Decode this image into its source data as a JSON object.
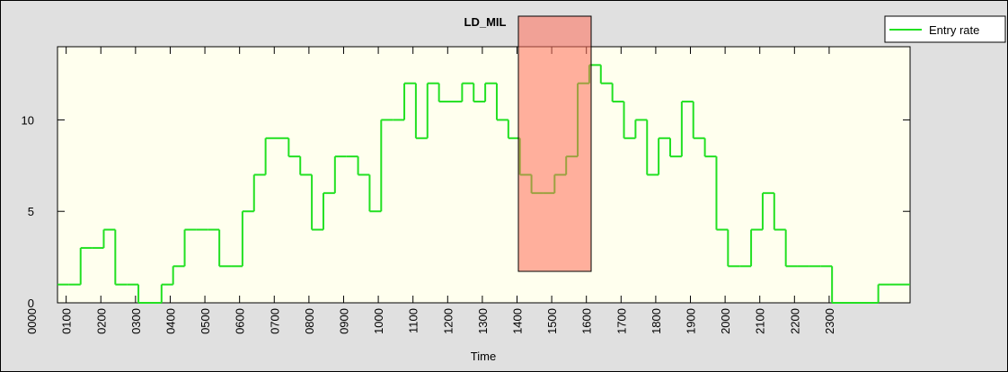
{
  "chart_data": {
    "type": "step",
    "title": "LD_MIL",
    "xlabel": "Time",
    "x": [
      45,
      65,
      85,
      105,
      125,
      145,
      165,
      185,
      205,
      225,
      245,
      265,
      285,
      305,
      325,
      345,
      365,
      385,
      405,
      425,
      445,
      465,
      485,
      505,
      525,
      545,
      565,
      585,
      605,
      625,
      645,
      665,
      685,
      705,
      725,
      745,
      765,
      785,
      805,
      825,
      845,
      865,
      885,
      905,
      925,
      945,
      965,
      985,
      1005,
      1025,
      1045,
      1065,
      1085,
      1105,
      1125,
      1145,
      1165,
      1185,
      1205,
      1225,
      1245,
      1265,
      1285,
      1305,
      1325,
      1345,
      1365,
      1385,
      1405,
      1425,
      1445,
      1465,
      1485
    ],
    "series": [
      {
        "name": "Entry rate",
        "color": "#22e022",
        "values": [
          1,
          1,
          3,
          3,
          4,
          1,
          1,
          0,
          0,
          1,
          2,
          4,
          4,
          4,
          2,
          2,
          5,
          7,
          9,
          9,
          8,
          7,
          4,
          6,
          8,
          8,
          7,
          5,
          10,
          10,
          12,
          9,
          12,
          11,
          11,
          12,
          11,
          12,
          10,
          9,
          7,
          6,
          6,
          7,
          8,
          12,
          13,
          12,
          11,
          9,
          10,
          7,
          9,
          8,
          11,
          9,
          8,
          4,
          2,
          2,
          4,
          6,
          4,
          2,
          2,
          2,
          2,
          0,
          0,
          0,
          0,
          1,
          1
        ]
      }
    ],
    "xlim": [
      45,
      1520
    ],
    "xticks": [
      {
        "value": 0,
        "label": "0000"
      },
      {
        "value": 60,
        "label": "0100"
      },
      {
        "value": 120,
        "label": "0200"
      },
      {
        "value": 180,
        "label": "0300"
      },
      {
        "value": 240,
        "label": "0400"
      },
      {
        "value": 300,
        "label": "0500"
      },
      {
        "value": 360,
        "label": "0600"
      },
      {
        "value": 420,
        "label": "0700"
      },
      {
        "value": 480,
        "label": "0800"
      },
      {
        "value": 540,
        "label": "0900"
      },
      {
        "value": 600,
        "label": "1000"
      },
      {
        "value": 660,
        "label": "1100"
      },
      {
        "value": 720,
        "label": "1200"
      },
      {
        "value": 780,
        "label": "1300"
      },
      {
        "value": 840,
        "label": "1400"
      },
      {
        "value": 900,
        "label": "1500"
      },
      {
        "value": 960,
        "label": "1600"
      },
      {
        "value": 1020,
        "label": "1700"
      },
      {
        "value": 1080,
        "label": "1800"
      },
      {
        "value": 1140,
        "label": "1900"
      },
      {
        "value": 1200,
        "label": "2000"
      },
      {
        "value": 1260,
        "label": "2100"
      },
      {
        "value": 1320,
        "label": "2200"
      },
      {
        "value": 1380,
        "label": "2300"
      }
    ],
    "ylim": [
      0,
      14
    ],
    "yticks": [
      0,
      5,
      10
    ],
    "legend": "top-right"
  }
}
